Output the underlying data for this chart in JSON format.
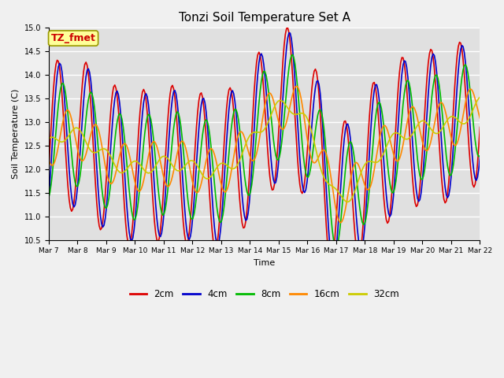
{
  "title": "Tonzi Soil Temperature Set A",
  "xlabel": "Time",
  "ylabel": "Soil Temperature (C)",
  "ylim": [
    10.5,
    15.0
  ],
  "annotation": "TZ_fmet",
  "annotation_color": "#cc0000",
  "annotation_bg": "#ffff99",
  "plot_bg": "#e0e0e0",
  "fig_bg": "#f0f0f0",
  "grid_color": "#ffffff",
  "series": {
    "2cm": {
      "color": "#dd0000",
      "lw": 1.2
    },
    "4cm": {
      "color": "#0000cc",
      "lw": 1.2
    },
    "8cm": {
      "color": "#00bb00",
      "lw": 1.2
    },
    "16cm": {
      "color": "#ff8800",
      "lw": 1.2
    },
    "32cm": {
      "color": "#cccc00",
      "lw": 1.2
    }
  },
  "n_points": 360,
  "days": 15,
  "start_day": 7
}
